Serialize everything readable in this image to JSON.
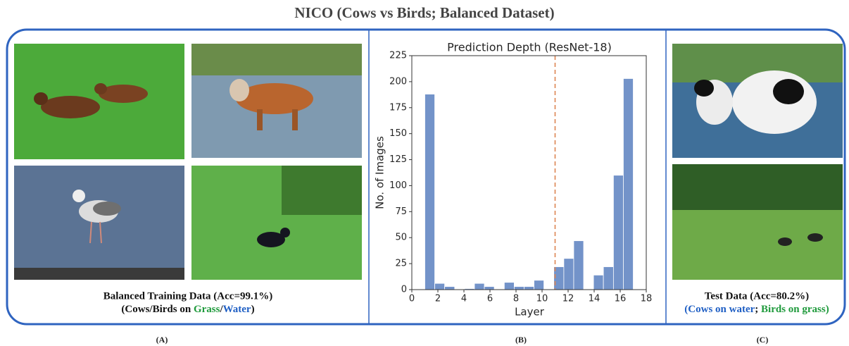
{
  "title": "NICO (Cows vs Birds; Balanced Dataset)",
  "panel_a": {
    "caption_line1": "Balanced Training Data (Acc=99.1%)",
    "caption_line2": [
      "(Cows/Birds on ",
      "Grass",
      "/",
      "Water",
      ")"
    ],
    "label": "(A)"
  },
  "panel_b": {
    "label": "(B)"
  },
  "panel_c": {
    "caption_line1": "Test Data (Acc=80.2%)",
    "caption_line2": [
      "(",
      "Cows on water",
      "; ",
      "Birds on grass",
      ")"
    ],
    "label": "(C)"
  },
  "chart_data": {
    "type": "histogram",
    "title": "Prediction Depth (ResNet-18)",
    "xlabel": "Layer",
    "ylabel": "No. of Images",
    "bins": [
      1,
      1.76,
      2.52,
      3.29,
      4.05,
      4.81,
      5.57,
      6.33,
      7.1,
      7.86,
      8.62,
      9.38,
      10.14,
      10.9,
      11.67,
      12.43,
      13.19,
      13.95,
      14.71,
      15.48,
      16.24,
      17
    ],
    "values": [
      188,
      6,
      3,
      0,
      1,
      6,
      3,
      0,
      7,
      3,
      3,
      9,
      0,
      22,
      30,
      47,
      0,
      14,
      22,
      110,
      203
    ],
    "color": "#7393c9",
    "vline": 11,
    "vline_color": "#dd8452",
    "xlim": [
      0,
      18
    ],
    "xticks": [
      0,
      2,
      4,
      6,
      8,
      10,
      12,
      14,
      16,
      18
    ],
    "ylim": [
      0,
      225
    ],
    "yticks": [
      0,
      25,
      50,
      75,
      100,
      125,
      150,
      175,
      200,
      225
    ]
  }
}
